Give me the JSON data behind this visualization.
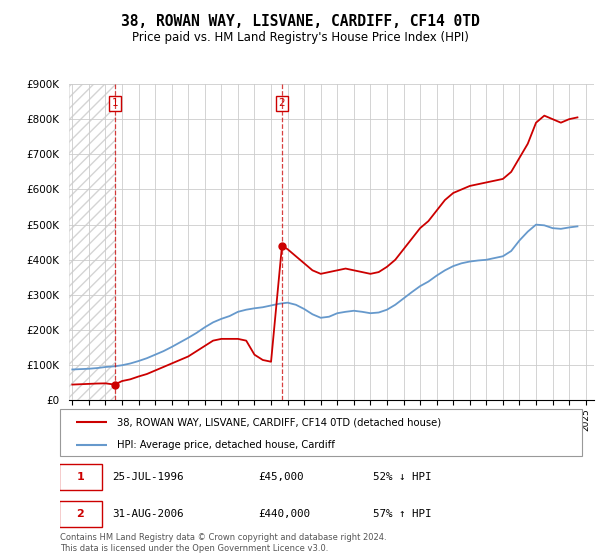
{
  "title": "38, ROWAN WAY, LISVANE, CARDIFF, CF14 0TD",
  "subtitle": "Price paid vs. HM Land Registry's House Price Index (HPI)",
  "legend_label_red": "38, ROWAN WAY, LISVANE, CARDIFF, CF14 0TD (detached house)",
  "legend_label_blue": "HPI: Average price, detached house, Cardiff",
  "annotation1_label": "1",
  "annotation1_date": "25-JUL-1996",
  "annotation1_price": "£45,000",
  "annotation1_hpi": "52% ↓ HPI",
  "annotation2_label": "2",
  "annotation2_date": "31-AUG-2006",
  "annotation2_price": "£440,000",
  "annotation2_hpi": "57% ↑ HPI",
  "footer": "Contains HM Land Registry data © Crown copyright and database right 2024.\nThis data is licensed under the Open Government Licence v3.0.",
  "ylim": [
    0,
    900000
  ],
  "yticks": [
    0,
    100000,
    200000,
    300000,
    400000,
    500000,
    600000,
    700000,
    800000,
    900000
  ],
  "ytick_labels": [
    "£0",
    "£100K",
    "£200K",
    "£300K",
    "£400K",
    "£500K",
    "£600K",
    "£700K",
    "£800K",
    "£900K"
  ],
  "xlim_start": 1993.8,
  "xlim_end": 2025.5,
  "transaction1_x": 1996.56,
  "transaction1_y": 45000,
  "transaction2_x": 2006.66,
  "transaction2_y": 440000,
  "red_color": "#cc0000",
  "blue_color": "#6699cc",
  "hatch_end_x": 1996.56,
  "red_line_data_x": [
    1994.0,
    1994.5,
    1995.0,
    1995.5,
    1996.0,
    1996.56,
    1997.0,
    1997.5,
    1998.0,
    1998.5,
    1999.0,
    1999.5,
    2000.0,
    2000.5,
    2001.0,
    2001.5,
    2002.0,
    2002.5,
    2003.0,
    2003.5,
    2004.0,
    2004.5,
    2005.0,
    2005.5,
    2006.0,
    2006.66,
    2007.0,
    2007.5,
    2008.0,
    2008.5,
    2009.0,
    2009.5,
    2010.0,
    2010.5,
    2011.0,
    2011.5,
    2012.0,
    2012.5,
    2013.0,
    2013.5,
    2014.0,
    2014.5,
    2015.0,
    2015.5,
    2016.0,
    2016.5,
    2017.0,
    2017.5,
    2018.0,
    2018.5,
    2019.0,
    2019.5,
    2020.0,
    2020.5,
    2021.0,
    2021.5,
    2022.0,
    2022.5,
    2023.0,
    2023.5,
    2024.0,
    2024.5
  ],
  "red_line_data_y": [
    45000,
    46000,
    47000,
    48000,
    48500,
    45000,
    55000,
    60000,
    68000,
    75000,
    85000,
    95000,
    105000,
    115000,
    125000,
    140000,
    155000,
    170000,
    175000,
    175000,
    175000,
    170000,
    130000,
    115000,
    110000,
    440000,
    430000,
    410000,
    390000,
    370000,
    360000,
    365000,
    370000,
    375000,
    370000,
    365000,
    360000,
    365000,
    380000,
    400000,
    430000,
    460000,
    490000,
    510000,
    540000,
    570000,
    590000,
    600000,
    610000,
    615000,
    620000,
    625000,
    630000,
    650000,
    690000,
    730000,
    790000,
    810000,
    800000,
    790000,
    800000,
    805000
  ],
  "blue_line_data_x": [
    1994.0,
    1994.5,
    1995.0,
    1995.5,
    1996.0,
    1996.56,
    1997.0,
    1997.5,
    1998.0,
    1998.5,
    1999.0,
    1999.5,
    2000.0,
    2000.5,
    2001.0,
    2001.5,
    2002.0,
    2002.5,
    2003.0,
    2003.5,
    2004.0,
    2004.5,
    2005.0,
    2005.5,
    2006.0,
    2006.5,
    2007.0,
    2007.5,
    2008.0,
    2008.5,
    2009.0,
    2009.5,
    2010.0,
    2010.5,
    2011.0,
    2011.5,
    2012.0,
    2012.5,
    2013.0,
    2013.5,
    2014.0,
    2014.5,
    2015.0,
    2015.5,
    2016.0,
    2016.5,
    2017.0,
    2017.5,
    2018.0,
    2018.5,
    2019.0,
    2019.5,
    2020.0,
    2020.5,
    2021.0,
    2021.5,
    2022.0,
    2022.5,
    2023.0,
    2023.5,
    2024.0,
    2024.5
  ],
  "blue_line_data_y": [
    88000,
    89000,
    90000,
    92000,
    95000,
    97000,
    100000,
    105000,
    112000,
    120000,
    130000,
    140000,
    152000,
    165000,
    178000,
    192000,
    208000,
    222000,
    232000,
    240000,
    252000,
    258000,
    262000,
    265000,
    270000,
    275000,
    278000,
    272000,
    260000,
    245000,
    235000,
    238000,
    248000,
    252000,
    255000,
    252000,
    248000,
    250000,
    258000,
    272000,
    290000,
    308000,
    325000,
    338000,
    355000,
    370000,
    382000,
    390000,
    395000,
    398000,
    400000,
    405000,
    410000,
    425000,
    455000,
    480000,
    500000,
    498000,
    490000,
    488000,
    492000,
    495000
  ]
}
